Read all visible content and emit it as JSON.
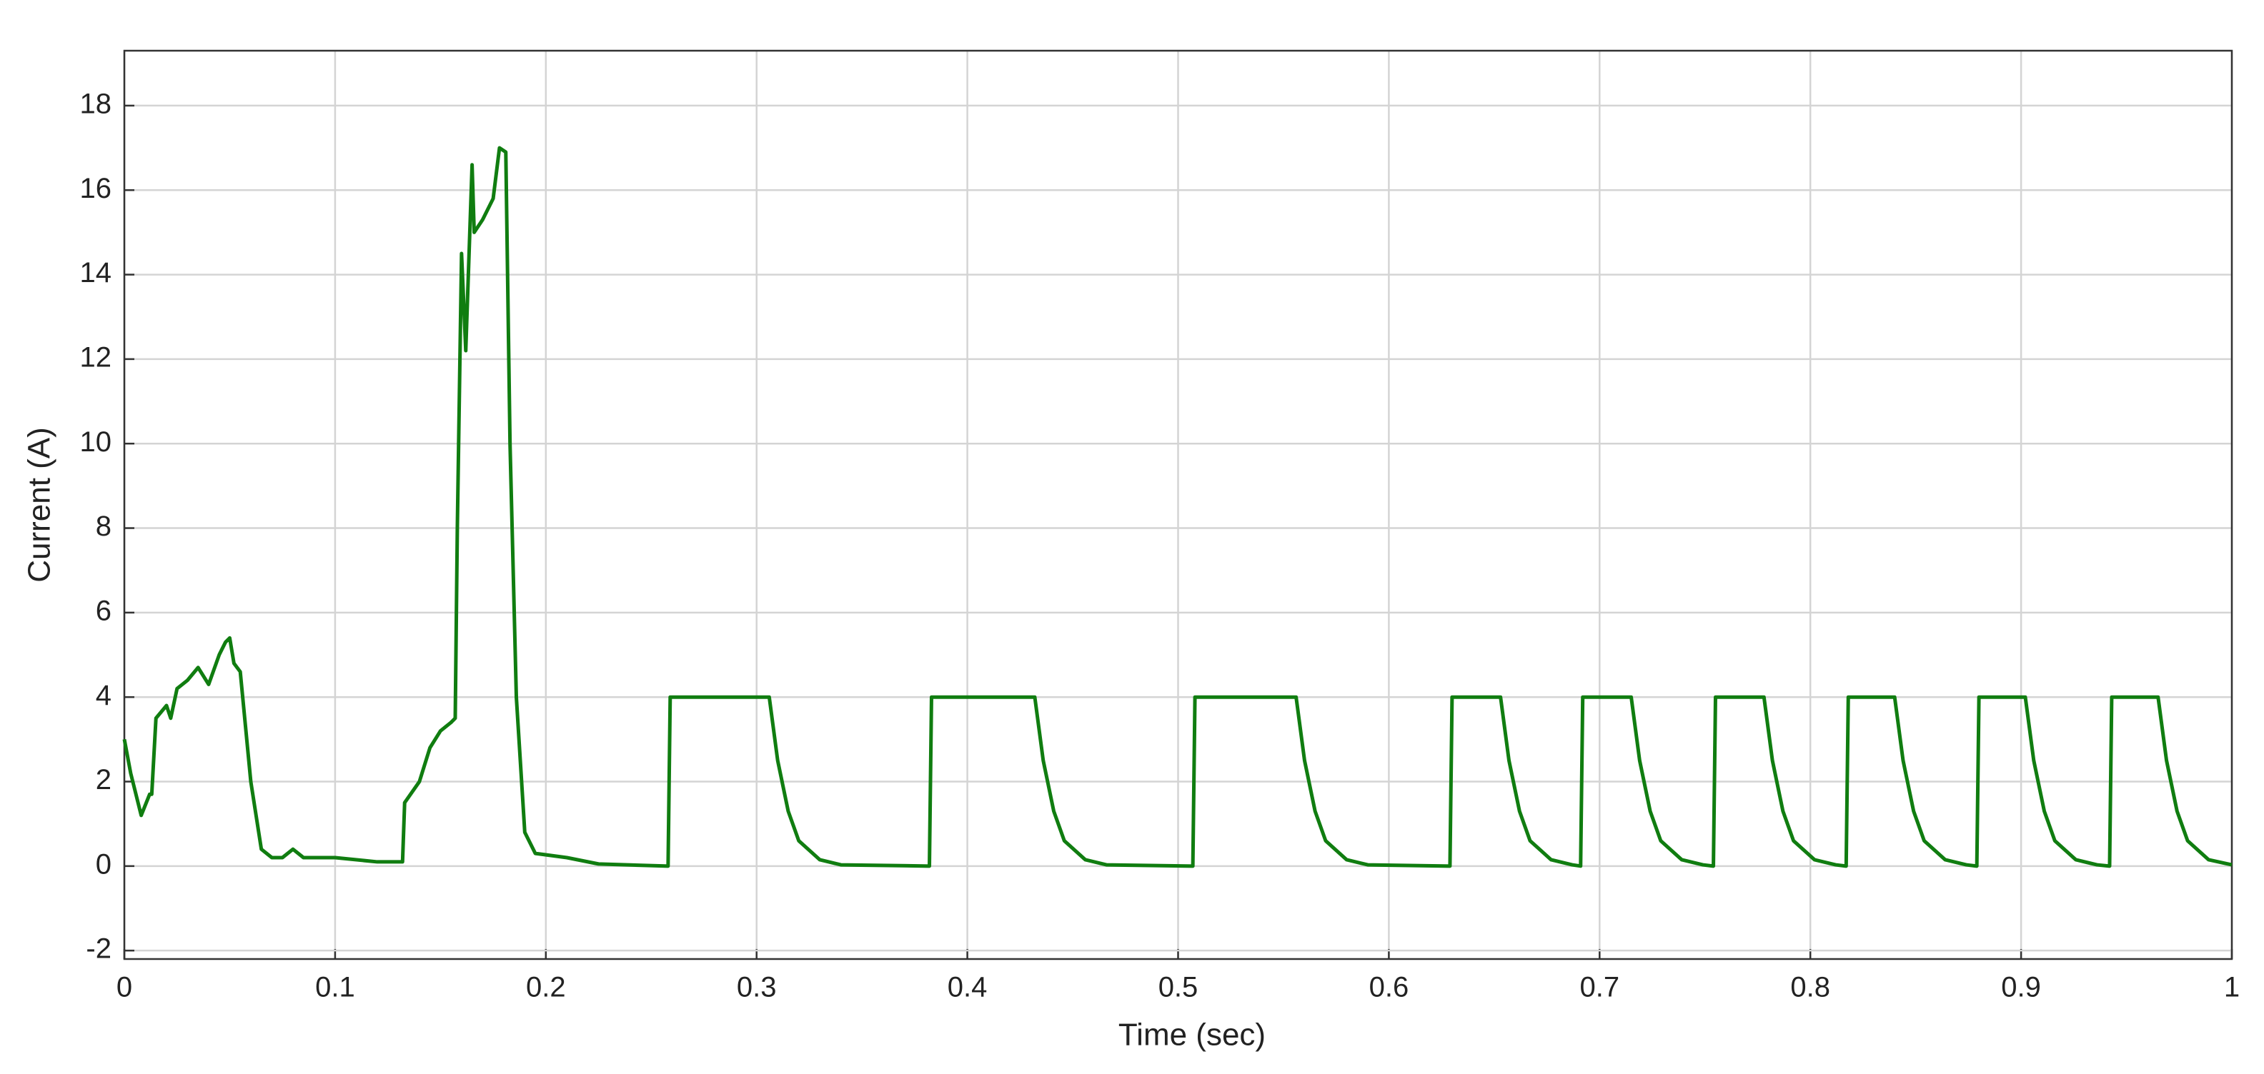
{
  "chart_data": {
    "type": "line",
    "x_label": "Time (sec)",
    "y_label": "Current (A)",
    "xlim": [
      0,
      1
    ],
    "ylim": [
      -2.2,
      19.3
    ],
    "xticks": [
      0,
      0.1,
      0.2,
      0.3,
      0.4,
      0.5,
      0.6,
      0.7,
      0.8,
      0.9,
      1
    ],
    "yticks": [
      -2,
      0,
      2,
      4,
      6,
      8,
      10,
      12,
      14,
      16,
      18
    ],
    "grid": true,
    "series": [
      {
        "color": "#107d10",
        "x": [
          0,
          0.003,
          0.008,
          0.012,
          0.013,
          0.015,
          0.02,
          0.022,
          0.025,
          0.03,
          0.035,
          0.04,
          0.045,
          0.048,
          0.05,
          0.052,
          0.055,
          0.06,
          0.065,
          0.07,
          0.075,
          0.08,
          0.085,
          0.1,
          0.12,
          0.132,
          0.133,
          0.14,
          0.145,
          0.15,
          0.155,
          0.157,
          0.158,
          0.16,
          0.162,
          0.165,
          0.166,
          0.17,
          0.175,
          0.178,
          0.181,
          0.183,
          0.186,
          0.19,
          0.195,
          0.21,
          0.225,
          0.258,
          0.259,
          0.306,
          0.31,
          0.315,
          0.32,
          0.33,
          0.34,
          0.382,
          0.383,
          0.432,
          0.436,
          0.441,
          0.446,
          0.456,
          0.466,
          0.507,
          0.508,
          0.556,
          0.56,
          0.565,
          0.57,
          0.58,
          0.59,
          0.629,
          0.63,
          0.653,
          0.657,
          0.662,
          0.667,
          0.677,
          0.687,
          0.691,
          0.692,
          0.715,
          0.719,
          0.724,
          0.729,
          0.739,
          0.749,
          0.754,
          0.755,
          0.778,
          0.782,
          0.787,
          0.792,
          0.802,
          0.812,
          0.817,
          0.818,
          0.84,
          0.844,
          0.849,
          0.854,
          0.864,
          0.874,
          0.879,
          0.88,
          0.902,
          0.906,
          0.911,
          0.916,
          0.926,
          0.936,
          0.942,
          0.943,
          0.965,
          0.969,
          0.974,
          0.979,
          0.989,
          1.0
        ],
        "values": [
          3.0,
          2.2,
          1.2,
          1.7,
          1.7,
          3.5,
          3.8,
          3.5,
          4.2,
          4.4,
          4.7,
          4.3,
          5.0,
          5.3,
          5.4,
          4.8,
          4.6,
          2.0,
          0.4,
          0.2,
          0.2,
          0.4,
          0.2,
          0.2,
          0.1,
          0.1,
          1.5,
          2.0,
          2.8,
          3.2,
          3.4,
          3.5,
          8,
          14.5,
          12.2,
          16.6,
          15.0,
          15.3,
          15.8,
          17.0,
          16.9,
          10,
          4,
          0.8,
          0.3,
          0.2,
          0.05,
          0,
          4.0,
          4.0,
          2.5,
          1.3,
          0.6,
          0.15,
          0.03,
          0,
          4.0,
          4.0,
          2.5,
          1.3,
          0.6,
          0.15,
          0.03,
          0,
          4.0,
          4.0,
          2.5,
          1.3,
          0.6,
          0.15,
          0.03,
          0,
          4.0,
          4.0,
          2.5,
          1.3,
          0.6,
          0.15,
          0.03,
          0,
          4.0,
          4.0,
          2.5,
          1.3,
          0.6,
          0.15,
          0.03,
          0,
          4.0,
          4.0,
          2.5,
          1.3,
          0.6,
          0.15,
          0.03,
          0,
          4.0,
          4.0,
          2.5,
          1.3,
          0.6,
          0.15,
          0.03,
          0,
          4.0,
          4.0,
          2.5,
          1.3,
          0.6,
          0.15,
          0.03,
          0,
          4.0,
          4.0,
          2.5,
          1.3,
          0.6,
          0.15,
          0.03
        ]
      }
    ]
  }
}
